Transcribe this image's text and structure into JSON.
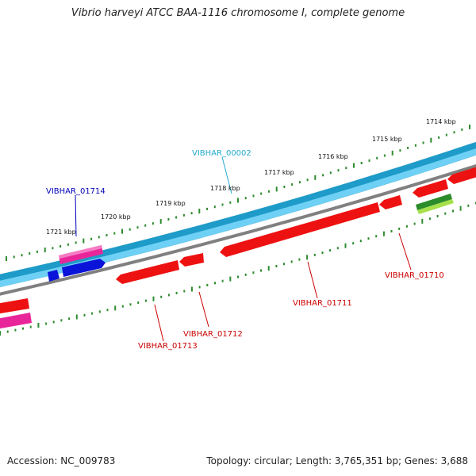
{
  "title": "Vibrio harveyi ATCC BAA-1116 chromosome I, complete genome",
  "footer": {
    "accession": "Accession: NC_009783",
    "summary": "Topology: circular; Length: 3,765,351 bp; Genes: 3,688"
  },
  "colors": {
    "ruler": "#2e8b2e",
    "backbone": "#1e9bc8",
    "backbone_light": "#6fd0f5",
    "divider": "#808080",
    "cds": "#ee1111",
    "cds_pink": "#e8269a",
    "cds_blue": "#0a14d8",
    "rna": "#2b8c2b",
    "rna_light": "#a6e04a",
    "label_red": "#cc0000",
    "label_blue": "#0000bb",
    "label_cyan": "#22aacc"
  },
  "ticks": [
    {
      "label": "1714 kbp"
    },
    {
      "label": "1715 kbp"
    },
    {
      "label": "1716 kbp"
    },
    {
      "label": "1717 kbp"
    },
    {
      "label": "1718 kbp"
    },
    {
      "label": "1719 kbp"
    },
    {
      "label": "1720 kbp"
    },
    {
      "label": "1721 kbp"
    }
  ],
  "genes": [
    {
      "label": "VIBHAR_00002",
      "strand": "center",
      "color_key": "label_cyan"
    },
    {
      "label": "VIBHAR_01714",
      "strand": "forward",
      "color_key": "label_blue"
    },
    {
      "label": "VIBHAR_01713",
      "strand": "reverse",
      "color_key": "label_red"
    },
    {
      "label": "VIBHAR_01712",
      "strand": "reverse",
      "color_key": "label_red"
    },
    {
      "label": "VIBHAR_01711",
      "strand": "reverse",
      "color_key": "label_red"
    },
    {
      "label": "VIBHAR_01710",
      "strand": "reverse",
      "color_key": "label_red"
    }
  ]
}
